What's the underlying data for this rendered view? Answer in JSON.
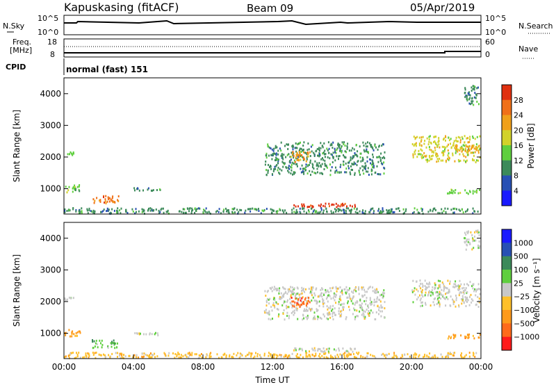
{
  "header": {
    "station": "Kapuskasing (fitACF)",
    "beam": "Beam 09",
    "date": "05/Apr/2019"
  },
  "noise_panel": {
    "left_label": "N.Sky",
    "right_label": "N.Search",
    "left_ticks": [
      "10^5",
      "10^0"
    ],
    "right_ticks": [
      "10^5",
      "10^0"
    ]
  },
  "freq_panel": {
    "left_label_line1": "Freq.",
    "left_label_line2": "[MHz]",
    "right_label": "Nave",
    "left_ticks": [
      "18",
      "8"
    ],
    "right_ticks": [
      "60",
      "0"
    ]
  },
  "cpid_panel": {
    "left_label": "CPID",
    "program": "normal (fast) 151"
  },
  "colors": {
    "power": [
      "#1a1aff",
      "#2850b4",
      "#3c8a5a",
      "#5fcf3e",
      "#d2d22a",
      "#f0a01a",
      "#f07018",
      "#e03010"
    ],
    "velocity": [
      "#ff1a1a",
      "#ff6a1a",
      "#ff9a1a",
      "#ffc02a",
      "#c8c8c8",
      "#5fcf3e",
      "#3c8a5a",
      "#2850b4",
      "#1a1aff"
    ],
    "ground_scatter": "#c8c8c8"
  },
  "chart_data": [
    {
      "type": "heatmap",
      "parameter": "power",
      "ylabel": "Slant Range [km]",
      "y_ticks": [
        1000,
        2000,
        3000,
        4000
      ],
      "ylim": [
        200,
        4500
      ],
      "x_ticks": [
        "00:00",
        "04:00",
        "08:00",
        "12:00",
        "16:00",
        "20:00",
        "00:00"
      ],
      "xlim_hours": [
        0,
        24
      ],
      "colorbar": {
        "label": "Power [dB]",
        "ticks": [
          "28",
          "24",
          "20",
          "16",
          "12",
          "8",
          "4"
        ],
        "range": [
          0,
          30
        ]
      },
      "scatter_regions": [
        {
          "t0": 0.0,
          "t1": 24.0,
          "r0": 180,
          "r1": 420,
          "level": 2
        },
        {
          "t0": 13.2,
          "t1": 16.8,
          "r0": 380,
          "r1": 560,
          "level": 7
        },
        {
          "t0": 1.6,
          "t1": 3.2,
          "r0": 500,
          "r1": 820,
          "level": 6
        },
        {
          "t0": 0.0,
          "t1": 1.0,
          "r0": 850,
          "r1": 1150,
          "level": 3
        },
        {
          "t0": 4.0,
          "t1": 5.6,
          "r0": 900,
          "r1": 1050,
          "level": 2
        },
        {
          "t0": 0.0,
          "t1": 0.6,
          "r0": 2000,
          "r1": 2200,
          "level": 3
        },
        {
          "t0": 11.5,
          "t1": 18.5,
          "r0": 1400,
          "r1": 2500,
          "level": 2
        },
        {
          "t0": 13.0,
          "t1": 14.2,
          "r0": 1800,
          "r1": 2200,
          "level": 5
        },
        {
          "t0": 20.0,
          "t1": 24.0,
          "r0": 1800,
          "r1": 2700,
          "level": 4
        },
        {
          "t0": 22.5,
          "t1": 24.0,
          "r0": 2100,
          "r1": 2400,
          "level": 5
        },
        {
          "t0": 22.0,
          "t1": 24.0,
          "r0": 800,
          "r1": 1000,
          "level": 3
        },
        {
          "t0": 23.0,
          "t1": 24.0,
          "r0": 3600,
          "r1": 4300,
          "level": 2
        }
      ]
    },
    {
      "type": "heatmap",
      "parameter": "velocity",
      "ylabel": "Slant Range [km]",
      "y_ticks": [
        1000,
        2000,
        3000,
        4000
      ],
      "ylim": [
        200,
        4500
      ],
      "x_ticks": [
        "00:00",
        "04:00",
        "08:00",
        "12:00",
        "16:00",
        "20:00",
        "00:00"
      ],
      "xlim_hours": [
        0,
        24
      ],
      "xlabel": "Time UT",
      "colorbar": {
        "label": "Velocity [m s⁻¹]",
        "ticks": [
          "1000",
          "500",
          "100",
          "25",
          "−25",
          "−100",
          "−500",
          "−1000"
        ]
      },
      "scatter_regions": [
        {
          "t0": 0.0,
          "t1": 24.0,
          "r0": 180,
          "r1": 420,
          "level": 3
        },
        {
          "t0": 13.2,
          "t1": 16.8,
          "r0": 380,
          "r1": 560,
          "level": 4
        },
        {
          "t0": 1.6,
          "t1": 3.2,
          "r0": 500,
          "r1": 820,
          "level": 5
        },
        {
          "t0": 0.0,
          "t1": 1.0,
          "r0": 850,
          "r1": 1150,
          "level": 2
        },
        {
          "t0": 4.0,
          "t1": 5.6,
          "r0": 900,
          "r1": 1050,
          "level": 4
        },
        {
          "t0": 0.0,
          "t1": 0.6,
          "r0": 2000,
          "r1": 2200,
          "level": 4
        },
        {
          "t0": 11.5,
          "t1": 18.5,
          "r0": 1400,
          "r1": 2500,
          "level": 4
        },
        {
          "t0": 13.0,
          "t1": 14.2,
          "r0": 1800,
          "r1": 2200,
          "level": 1
        },
        {
          "t0": 20.0,
          "t1": 24.0,
          "r0": 1800,
          "r1": 2700,
          "level": 4
        },
        {
          "t0": 22.0,
          "t1": 24.0,
          "r0": 800,
          "r1": 1000,
          "level": 2
        },
        {
          "t0": 23.0,
          "t1": 24.0,
          "r0": 3600,
          "r1": 4300,
          "level": 4
        }
      ]
    }
  ]
}
